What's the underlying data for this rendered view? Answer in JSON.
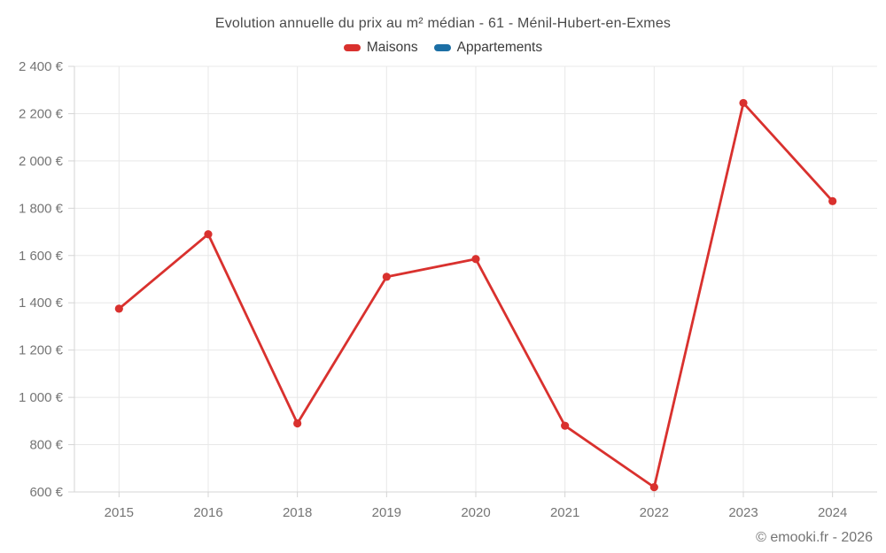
{
  "chart_data": {
    "type": "line",
    "title": "Evolution annuelle du prix au m² médian - 61 - Ménil-Hubert-en-Exmes",
    "categories": [
      "2015",
      "2016",
      "2018",
      "2019",
      "2020",
      "2021",
      "2022",
      "2023",
      "2024"
    ],
    "series": [
      {
        "name": "Maisons",
        "color": "#d9312e",
        "values": [
          1375,
          1690,
          890,
          1510,
          1585,
          880,
          620,
          2245,
          1830
        ]
      },
      {
        "name": "Appartements",
        "color": "#1c6fa5",
        "values": []
      }
    ],
    "xlabel": "",
    "ylabel": "",
    "ylim": [
      600,
      2400
    ],
    "y_tick_step": 200,
    "y_tick_labels": [
      "600 €",
      "800 €",
      "1 000 €",
      "1 200 €",
      "1 400 €",
      "1 600 €",
      "1 800 €",
      "2 000 €",
      "2 200 €",
      "2 400 €"
    ],
    "grid": true,
    "legend_position": "top",
    "footer": "© emooki.fr - 2026"
  },
  "colors": {
    "grid_line": "#e8e8e8",
    "axis_line": "#d4d4d4",
    "tick_label": "#757575",
    "title": "#4a4a4a",
    "footer": "#757575",
    "background": "#ffffff"
  }
}
